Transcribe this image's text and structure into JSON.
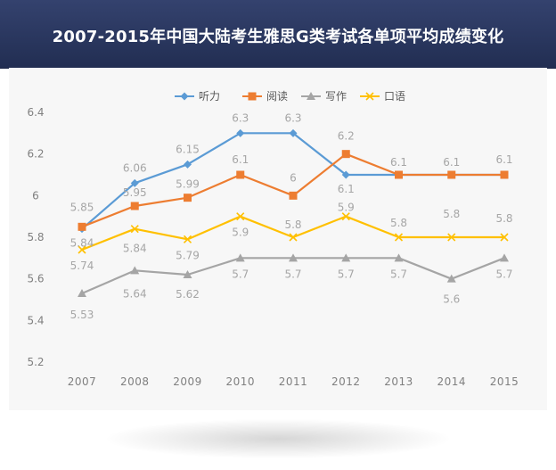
{
  "header": {
    "title": "2007-2015年中国大陆考生雅思G类考试各单项平均成绩变化"
  },
  "chart_data": {
    "type": "line",
    "title": "2007-2015年中国大陆考生雅思G类考试各单项平均成绩变化",
    "categories": [
      "2007",
      "2008",
      "2009",
      "2010",
      "2011",
      "2012",
      "2013",
      "2014",
      "2015"
    ],
    "ylim": [
      5.2,
      6.4
    ],
    "yticks": [
      5.2,
      5.4,
      5.6,
      5.8,
      6,
      6.2,
      6.4
    ],
    "ytick_labels": [
      "5.2",
      "5.4",
      "5.6",
      "5.8",
      "6",
      "6.2",
      "6.4"
    ],
    "grid": false,
    "legend_position": "top-center",
    "series": [
      {
        "name": "听力",
        "color": "#5b9bd5",
        "marker": "diamond",
        "values": [
          5.84,
          6.06,
          6.15,
          6.3,
          6.3,
          6.1,
          6.1,
          6.1,
          6.1
        ],
        "labels": [
          "5.84",
          "6.06",
          "6.15",
          "6.3",
          "6.3",
          "6.1",
          "",
          "",
          ""
        ]
      },
      {
        "name": "阅读",
        "color": "#ed7d31",
        "marker": "square",
        "values": [
          5.85,
          5.95,
          5.99,
          6.1,
          6,
          6.2,
          6.1,
          6.1,
          6.1
        ],
        "labels": [
          "5.85",
          "5.95",
          "5.99",
          "6.1",
          "6",
          "6.2",
          "6.1",
          "6.1",
          "6.1"
        ]
      },
      {
        "name": "写作",
        "color": "#a5a5a5",
        "marker": "triangle",
        "values": [
          5.53,
          5.64,
          5.62,
          5.7,
          5.7,
          5.7,
          5.7,
          5.6,
          5.7
        ],
        "labels": [
          "5.53",
          "5.64",
          "5.62",
          "5.7",
          "5.7",
          "5.7",
          "5.7",
          "5.6",
          "5.7"
        ]
      },
      {
        "name": "口语",
        "color": "#ffc000",
        "marker": "x",
        "values": [
          5.74,
          5.84,
          5.79,
          5.9,
          5.8,
          5.9,
          5.8,
          5.8,
          5.8
        ],
        "labels": [
          "5.74",
          "5.84",
          "5.79",
          "5.9",
          "5.8",
          "5.9",
          "5.8",
          "5.8",
          "5.8"
        ]
      }
    ]
  }
}
